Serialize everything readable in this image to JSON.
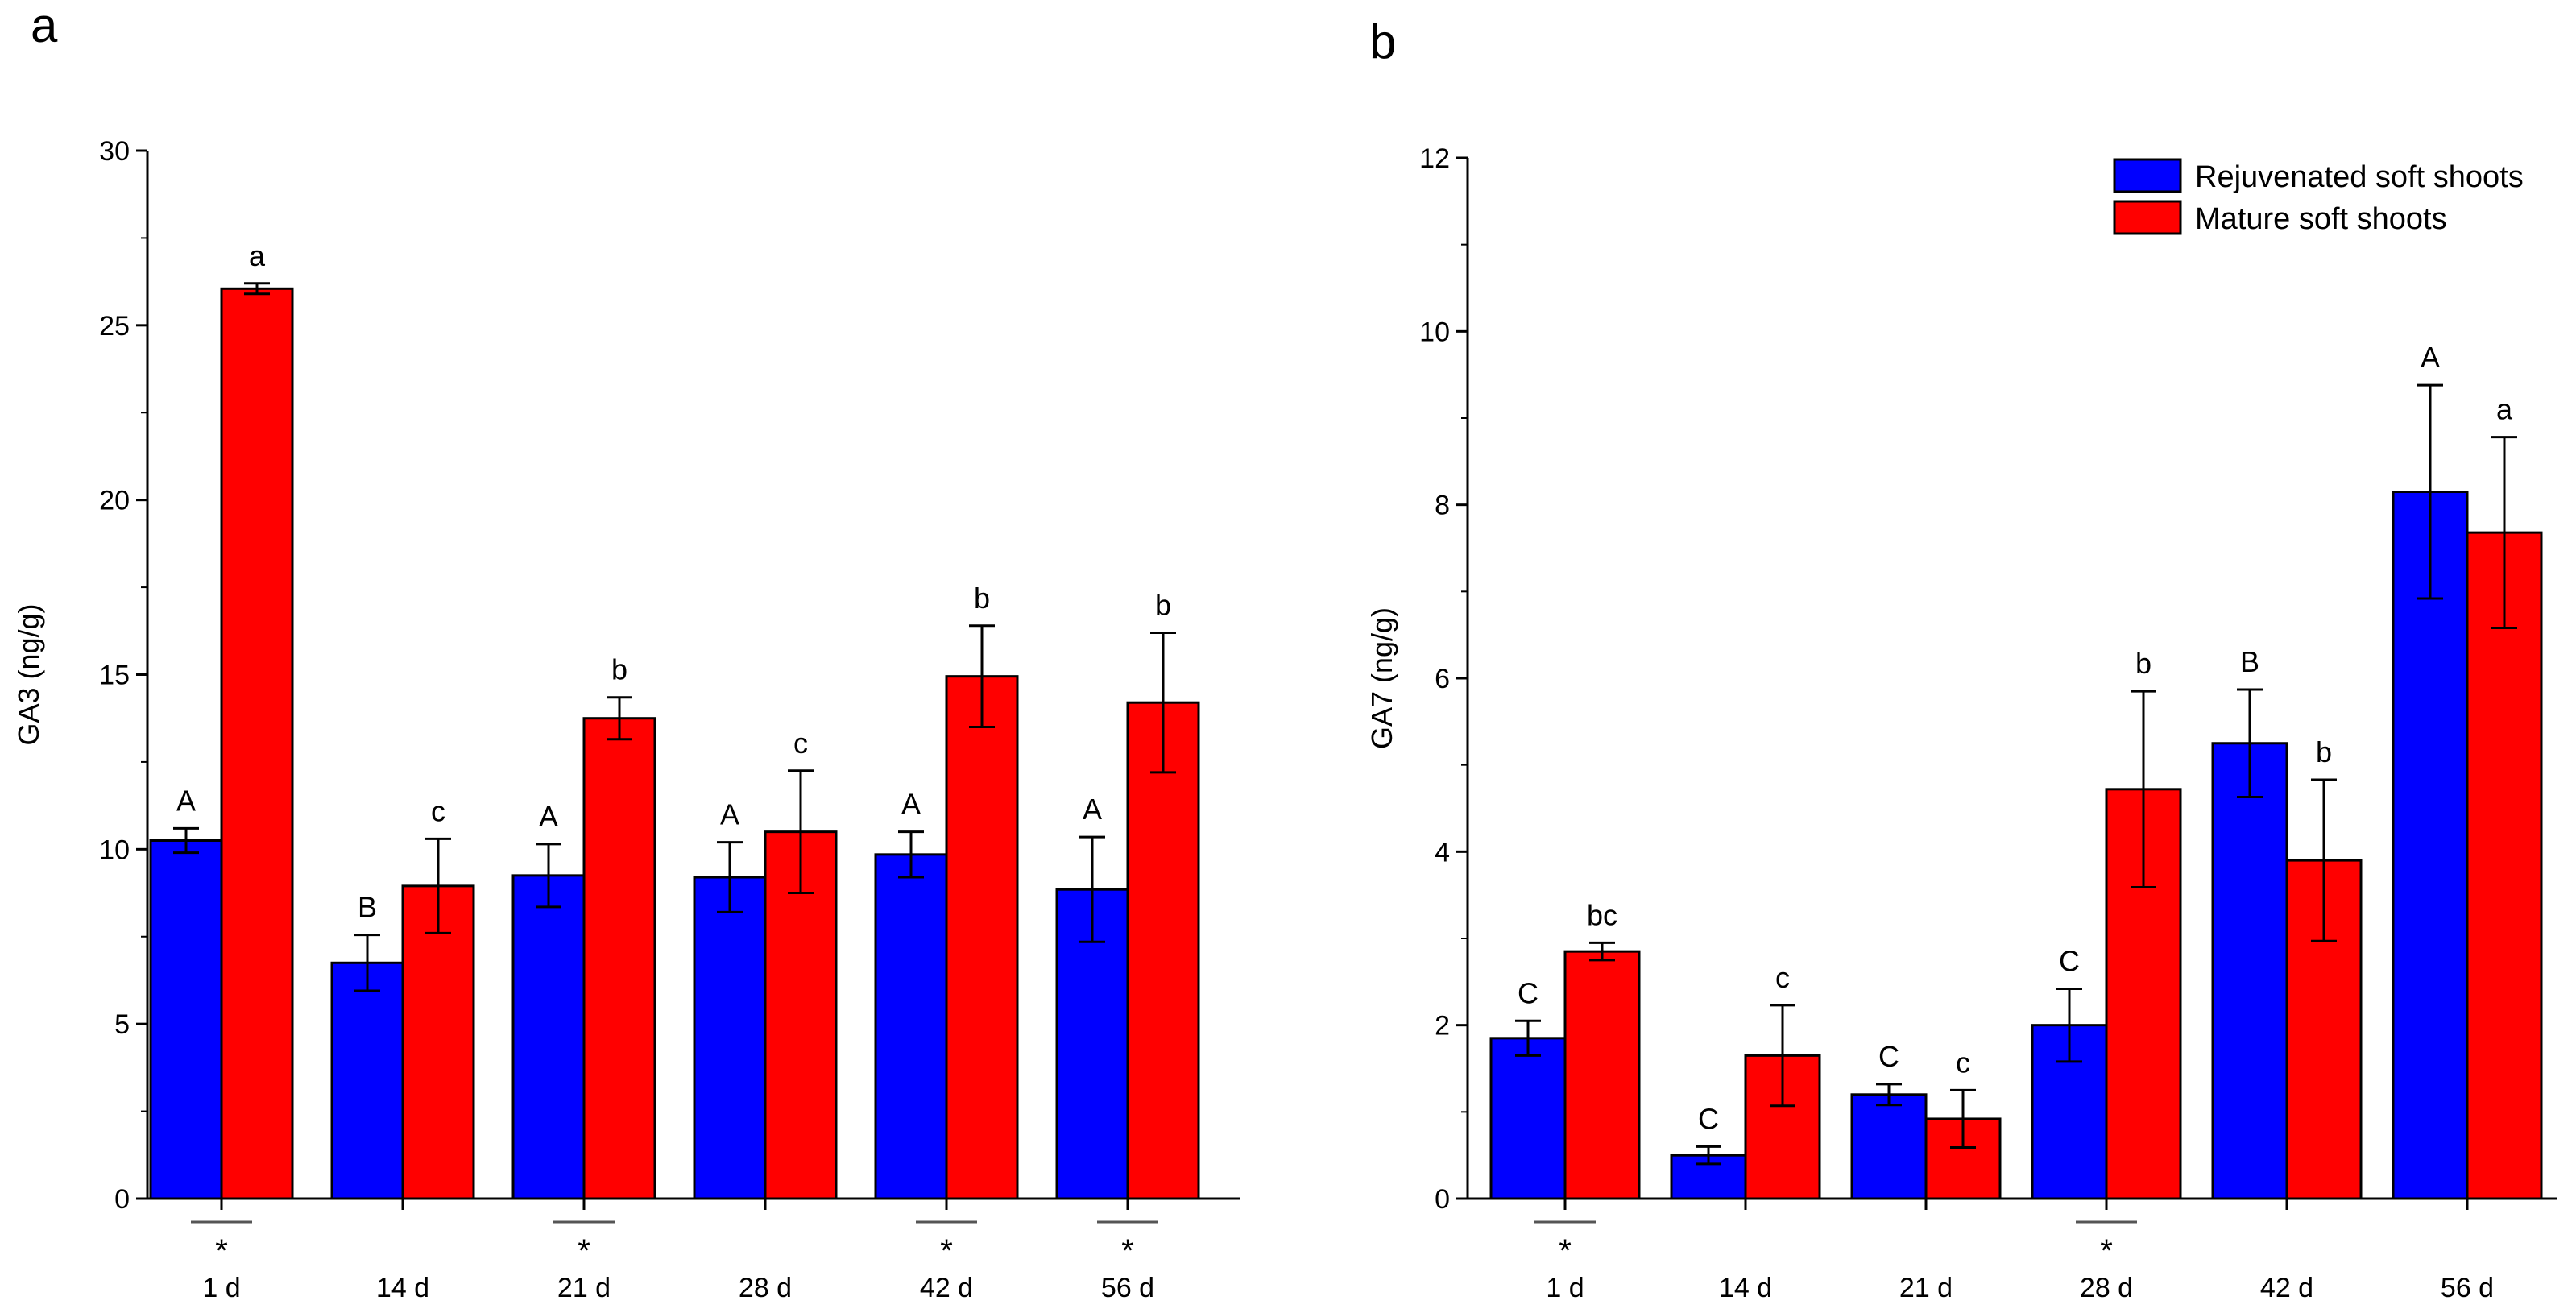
{
  "colors": {
    "series1": "#0000FF",
    "series2": "#FF0000",
    "axis": "#000000"
  },
  "legend": {
    "entries": [
      "Rejuvenated soft shoots",
      "Mature soft shoots"
    ],
    "placement": "top-right of panel b"
  },
  "chart_data": [
    {
      "panel": "a",
      "type": "bar",
      "title": "",
      "xlabel": "",
      "ylabel": "GA3 (ng/g)",
      "ylim": [
        0,
        30
      ],
      "yticks": [
        0,
        5,
        10,
        15,
        20,
        25,
        30
      ],
      "categories": [
        "1 d",
        "14 d",
        "21 d",
        "28 d",
        "42 d",
        "56 d"
      ],
      "series": [
        {
          "name": "Rejuvenated soft shoots",
          "values": [
            10.25,
            6.75,
            9.25,
            9.2,
            9.85,
            8.85
          ],
          "errors": [
            0.35,
            0.8,
            0.9,
            1.0,
            0.65,
            1.5
          ],
          "letters": [
            "A",
            "B",
            "A",
            "A",
            "A",
            "A"
          ]
        },
        {
          "name": "Mature soft shoots",
          "values": [
            26.05,
            8.95,
            13.75,
            10.5,
            14.95,
            14.2
          ],
          "errors": [
            0.15,
            1.35,
            0.6,
            1.75,
            1.45,
            2.0
          ],
          "letters": [
            "a",
            "c",
            "b",
            "c",
            "b",
            "b"
          ]
        }
      ],
      "significance": [
        "*",
        "",
        "*",
        "",
        "*",
        "*"
      ]
    },
    {
      "panel": "b",
      "type": "bar",
      "title": "",
      "xlabel": "",
      "ylabel": "GA7 (ng/g)",
      "ylim": [
        0,
        12
      ],
      "yticks": [
        0,
        2,
        4,
        6,
        8,
        10,
        12
      ],
      "categories": [
        "1 d",
        "14 d",
        "21 d",
        "28 d",
        "42 d",
        "56 d"
      ],
      "series": [
        {
          "name": "Rejuvenated soft shoots",
          "values": [
            1.85,
            0.5,
            1.2,
            2.0,
            5.25,
            8.15
          ],
          "errors": [
            0.2,
            0.1,
            0.12,
            0.42,
            0.62,
            1.23
          ],
          "letters": [
            "C",
            "C",
            "C",
            "C",
            "B",
            "A"
          ]
        },
        {
          "name": "Mature soft shoots",
          "values": [
            2.85,
            1.65,
            0.92,
            4.72,
            3.9,
            7.68
          ],
          "errors": [
            0.1,
            0.58,
            0.33,
            1.13,
            0.93,
            1.1
          ],
          "letters": [
            "bc",
            "c",
            "c",
            "b",
            "b",
            "a"
          ]
        }
      ],
      "significance": [
        "*",
        "",
        "",
        "*",
        "",
        ""
      ]
    }
  ],
  "panel_labels": [
    "a",
    "b"
  ]
}
